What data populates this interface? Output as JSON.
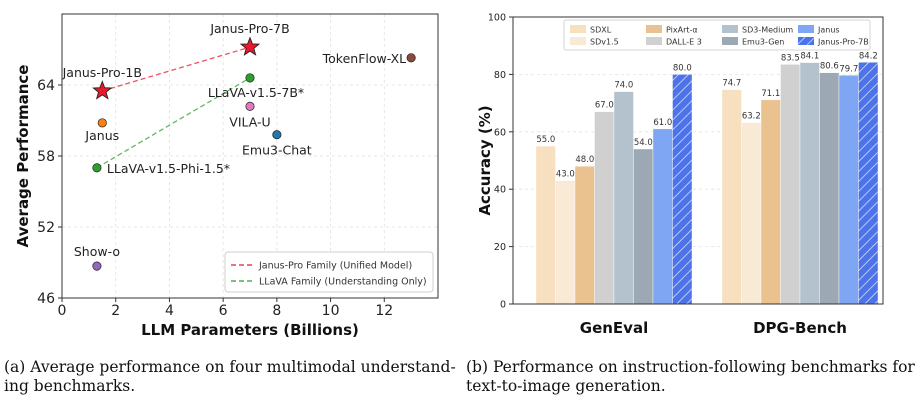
{
  "captions": {
    "a": "(a) Average performance on four multimodal understand-ing benchmarks.",
    "b": "(b) Performance on instruction-following benchmarks for text-to-image generation."
  },
  "chart_data": [
    {
      "type": "scatter",
      "xlabel": "LLM Parameters (Billions)",
      "ylabel": "Average Performance",
      "xlim": [
        0,
        14
      ],
      "ylim": [
        46,
        70
      ],
      "xticks": [
        0,
        2,
        4,
        6,
        8,
        10,
        12
      ],
      "yticks": [
        46,
        52,
        58,
        64
      ],
      "grid": true,
      "legend_position": "bottom-right",
      "points": [
        {
          "label": "Janus-Pro-7B",
          "x": 7.0,
          "y": 67.2,
          "marker": "star",
          "color": "#e8192c"
        },
        {
          "label": "Janus-Pro-1B",
          "x": 1.5,
          "y": 63.5,
          "marker": "star",
          "color": "#e8192c"
        },
        {
          "label": "TokenFlow-XL",
          "x": 13.0,
          "y": 66.3,
          "marker": "circle",
          "color": "#8c4a3c"
        },
        {
          "label": "LLaVA-v1.5-7B*",
          "x": 7.0,
          "y": 64.6,
          "marker": "circle",
          "color": "#2ca02c"
        },
        {
          "label": "VILA-U",
          "x": 7.0,
          "y": 62.2,
          "marker": "circle",
          "color": "#e377c2"
        },
        {
          "label": "Janus",
          "x": 1.5,
          "y": 60.8,
          "marker": "circle",
          "color": "#ff7f0e"
        },
        {
          "label": "Emu3-Chat",
          "x": 8.0,
          "y": 59.8,
          "marker": "circle",
          "color": "#1f77b4"
        },
        {
          "label": "LLaVA-v1.5-Phi-1.5*",
          "x": 1.3,
          "y": 57.0,
          "marker": "circle",
          "color": "#2ca02c"
        },
        {
          "label": "Show-o",
          "x": 1.3,
          "y": 48.7,
          "marker": "circle",
          "color": "#9467bd"
        }
      ],
      "series": [
        {
          "name": "Janus-Pro Family (Unified Model)",
          "color": "#e8192c",
          "points": [
            [
              1.5,
              63.5
            ],
            [
              7.0,
              67.2
            ]
          ]
        },
        {
          "name": "LLaVA Family (Understanding Only)",
          "color": "#2ca02c",
          "points": [
            [
              1.3,
              57.0
            ],
            [
              7.0,
              64.6
            ]
          ]
        }
      ]
    },
    {
      "type": "bar",
      "ylabel": "Accuracy (%)",
      "ylim": [
        0,
        100
      ],
      "yticks": [
        0,
        20,
        40,
        60,
        80,
        100
      ],
      "grid": true,
      "legend_position": "top",
      "categories": [
        "GenEval",
        "DPG-Bench"
      ],
      "series": [
        {
          "name": "SDXL",
          "color": "#f7e0c0",
          "values": [
            55.0,
            74.7
          ]
        },
        {
          "name": "SDv1.5",
          "color": "#f9ead6",
          "values": [
            43.0,
            63.2
          ]
        },
        {
          "name": "PixArt-α",
          "color": "#e9c28f",
          "values": [
            48.0,
            71.1
          ]
        },
        {
          "name": "DALL-E 3",
          "color": "#d0d0d0",
          "values": [
            67.0,
            83.5
          ]
        },
        {
          "name": "SD3-Medium",
          "color": "#b4c2cd",
          "values": [
            74.0,
            84.1
          ]
        },
        {
          "name": "Emu3-Gen",
          "color": "#9ca9b5",
          "values": [
            54.0,
            80.6
          ]
        },
        {
          "name": "Janus",
          "color": "#7fa6f2",
          "values": [
            61.0,
            79.7
          ]
        },
        {
          "name": "Janus-Pro-7B",
          "color": "#4d73ea",
          "hatch": true,
          "values": [
            80.0,
            84.2
          ]
        }
      ]
    }
  ]
}
